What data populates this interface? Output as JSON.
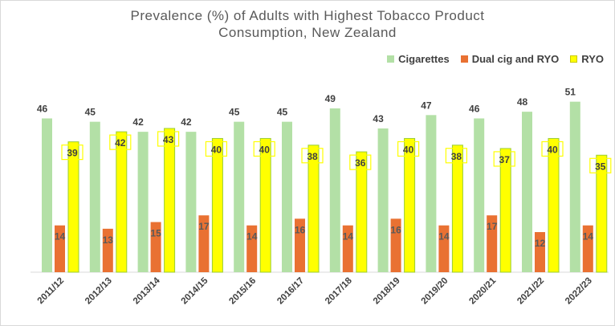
{
  "chart_data": {
    "type": "bar",
    "title": "Prevalence (%) of Adults with Highest Tobacco Product Consumption, New Zealand",
    "title_lines": [
      "Prevalence (%) of Adults with Highest Tobacco Product",
      "Consumption, New Zealand"
    ],
    "categories": [
      "2011/12",
      "2012/13",
      "2013/14",
      "2014/15",
      "2015/16",
      "2016/17",
      "2017/18",
      "2018/19",
      "2019/20",
      "2020/21",
      "2021/22",
      "2022/23"
    ],
    "series": [
      {
        "name": "Cigarettes",
        "color": "#b3e0a6",
        "values": [
          46,
          45,
          42,
          42,
          45,
          45,
          49,
          43,
          47,
          46,
          48,
          51
        ]
      },
      {
        "name": "Dual cig and RYO",
        "color": "#e97132",
        "values": [
          14,
          13,
          15,
          17,
          14,
          16,
          14,
          16,
          14,
          17,
          12,
          14
        ]
      },
      {
        "name": "RYO",
        "color": "#ffff00",
        "values": [
          39,
          42,
          43,
          40,
          40,
          38,
          36,
          40,
          38,
          37,
          40,
          35
        ]
      }
    ],
    "xlabel": "",
    "ylabel": "",
    "ylim": [
      0,
      55
    ],
    "grid": false,
    "legend": "top-right",
    "data_labels": true
  }
}
